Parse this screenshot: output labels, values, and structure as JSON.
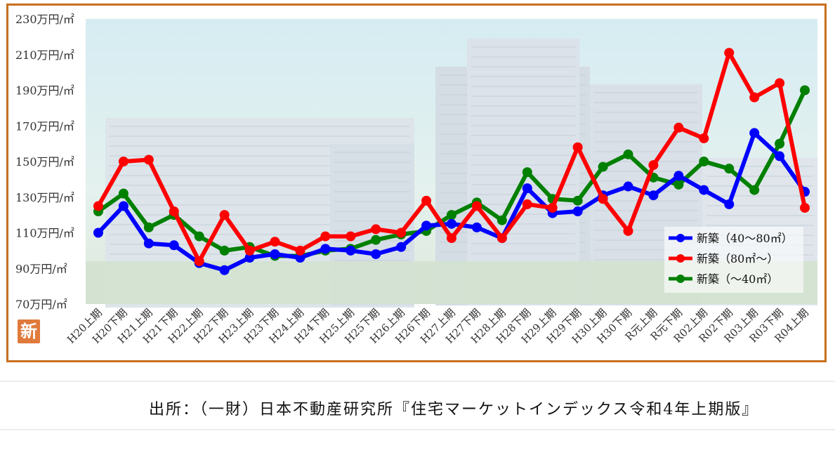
{
  "badge": "新",
  "source": "出所：（一財）日本不動産研究所『住宅マーケットインデックス令和4年上期版』",
  "chart_data": {
    "type": "line",
    "title": "",
    "xlabel": "",
    "ylabel": "",
    "ylim": [
      70,
      230
    ],
    "yticks": [
      70,
      90,
      110,
      130,
      150,
      170,
      190,
      210,
      230
    ],
    "ytick_suffix": "万円/㎡",
    "grid": false,
    "legend_position": "bottom-right",
    "categories": [
      "H20上期",
      "H20下期",
      "H21上期",
      "H21下期",
      "H22上期",
      "H22下期",
      "H23上期",
      "H23下期",
      "H24上期",
      "H24下期",
      "H25上期",
      "H25下期",
      "H26上期",
      "H26下期",
      "H27上期",
      "H27下期",
      "H28上期",
      "H28下期",
      "H29上期",
      "H29下期",
      "H30上期",
      "H30下期",
      "R元上期",
      "R元下期",
      "R02上期",
      "R02下期",
      "R03上期",
      "R03下期",
      "R04上期"
    ],
    "series": [
      {
        "name": "新築（40～80㎡）",
        "color": "#0000ff",
        "values": [
          110,
          125,
          104,
          103,
          93,
          89,
          96,
          98,
          96,
          101,
          100,
          98,
          102,
          114,
          115,
          113,
          107,
          135,
          121,
          122,
          131,
          136,
          131,
          142,
          134,
          126,
          166,
          153,
          133
        ]
      },
      {
        "name": "新築（80㎡～）",
        "color": "#ff0000",
        "values": [
          125,
          150,
          151,
          122,
          94,
          120,
          100,
          105,
          100,
          108,
          108,
          112,
          110,
          128,
          107,
          125,
          107,
          126,
          124,
          158,
          129,
          111,
          148,
          169,
          163,
          211,
          186,
          194,
          124
        ]
      },
      {
        "name": "新築（～40㎡）",
        "color": "#008000",
        "values": [
          122,
          132,
          113,
          120,
          108,
          100,
          102,
          97,
          97,
          100,
          101,
          106,
          109,
          111,
          120,
          127,
          117,
          144,
          129,
          128,
          147,
          154,
          141,
          137,
          150,
          146,
          134,
          160,
          190
        ]
      }
    ]
  }
}
